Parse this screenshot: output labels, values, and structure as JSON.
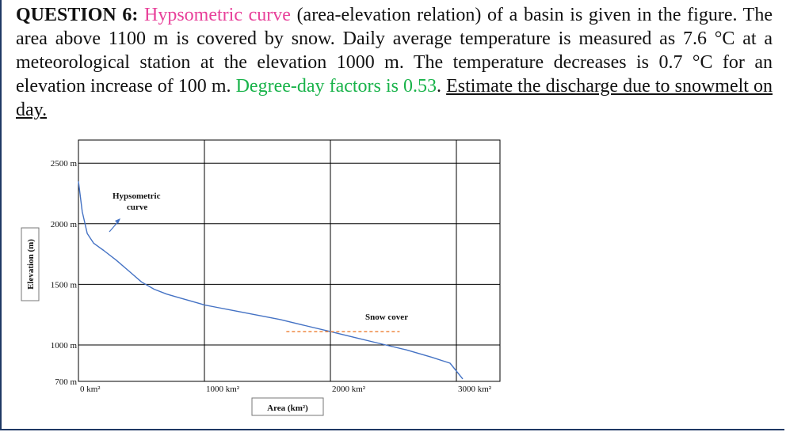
{
  "question": {
    "label": "QUESTION 6:",
    "topic": "Hypsometric curve",
    "text1": " (area-elevation relation) of a basin is given in the figure. The area above 1100 m is covered by snow. Daily average temperature is measured as 7.6 °C at a meteorological station at the elevation 1000 m. The temperature decreases is 0.7 °C for an elevation increase of 100 m. ",
    "factor": "Degree-day factors is 0.53",
    "text2": ". ",
    "task": "Estimate the discharge due to snowmelt on day."
  },
  "colors": {
    "topic": "#e8409a",
    "factor": "#19b34a",
    "curve": "#4472c4",
    "snow_line": "#ed7d31",
    "grid": "#000000"
  },
  "chart_data": {
    "type": "line",
    "ylabel": "Elevation (m)",
    "xlabel": "Area (km²)",
    "y_ticks": [
      "2500 m",
      "2000 m",
      "1500 m",
      "1000 m",
      "700 m"
    ],
    "x_ticks": [
      "0 km²",
      "1000 km²",
      "2000 km²",
      "3000 km²"
    ],
    "xlim": [
      0,
      3350
    ],
    "ylim": [
      700,
      2700
    ],
    "annotations": {
      "curve_label_line1": "Hypsometric",
      "curve_label_line2": "curve",
      "snow_label": "Snow cover"
    },
    "series": [
      {
        "x": [
          0,
          30,
          70,
          120,
          200,
          300,
          400,
          500,
          600,
          700,
          800,
          900,
          1000,
          1100,
          1200,
          1400,
          1600,
          1800,
          2000,
          2200,
          2400,
          2600,
          2800,
          2950,
          3050
        ],
        "y": [
          2350,
          2100,
          1920,
          1840,
          1780,
          1700,
          1610,
          1520,
          1460,
          1420,
          1390,
          1360,
          1330,
          1310,
          1290,
          1250,
          1210,
          1160,
          1110,
          1060,
          1010,
          960,
          900,
          850,
          720
        ]
      }
    ],
    "snow_line": {
      "y": 1110,
      "x": [
        1650,
        2550
      ]
    }
  }
}
